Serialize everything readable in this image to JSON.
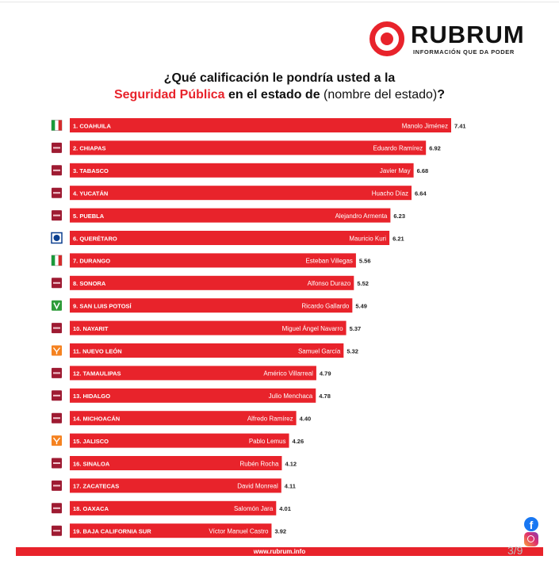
{
  "brand": {
    "name": "RUBRUM",
    "tagline": "INFORMACIÓN QUE DA PODER",
    "color": "#e8232b"
  },
  "title": {
    "line1": "¿Qué calificación le pondría usted a la",
    "line2_highlight": "Seguridad Pública",
    "line2_mid": " en el estado de ",
    "line2_paren": "(nombre del estado)",
    "line2_end": "?"
  },
  "chart_data": {
    "type": "bar",
    "orientation": "horizontal",
    "xlim": [
      0,
      7.41
    ],
    "bar_color": "#e8232b",
    "categories": [
      "1. COAHUILA",
      "2. CHIAPAS",
      "3. TABASCO",
      "4. YUCATÁN",
      "5. PUEBLA",
      "6. QUERÉTARO",
      "7. DURANGO",
      "8. SONORA",
      "9. SAN LUIS POTOSÍ",
      "10. NAYARIT",
      "11. NUEVO LEÓN",
      "12. TAMAULIPAS",
      "13. HIDALGO",
      "14. MICHOACÁN",
      "15. JALISCO",
      "16. SINALOA",
      "17. ZACATECAS",
      "18. OAXACA",
      "19. BAJA CALIFORNIA SUR"
    ],
    "governors": [
      "Manolo Jiménez",
      "Eduardo Ramírez",
      "Javier May",
      "Huacho Díaz",
      "Alejandro Armenta",
      "Mauricio Kuri",
      "Esteban Villegas",
      "Alfonso Durazo",
      "Ricardo Gallardo",
      "Miguel Ángel Navarro",
      "Samuel García",
      "Américo Villarreal",
      "Julio Menchaca",
      "Alfredo Ramírez",
      "Pablo Lemus",
      "Rubén Rocha",
      "David Monreal",
      "Salomón Jara",
      "Víctor Manuel Castro"
    ],
    "values": [
      7.41,
      6.92,
      6.68,
      6.64,
      6.23,
      6.21,
      5.56,
      5.52,
      5.49,
      5.37,
      5.32,
      4.79,
      4.78,
      4.4,
      4.26,
      4.12,
      4.11,
      4.01,
      3.92
    ],
    "value_labels": [
      "7.41",
      "6.92",
      "6.68",
      "6.64",
      "6.23",
      "6.21",
      "5.56",
      "5.52",
      "5.49",
      "5.37",
      "5.32",
      "4.79",
      "4.78",
      "4.40",
      "4.26",
      "4.12",
      "4.11",
      "4.01",
      "3.92"
    ],
    "party_icons": [
      "pri-logo",
      "morena-logo",
      "morena-logo",
      "morena-logo",
      "morena-logo",
      "pan-logo",
      "pri-logo",
      "morena-logo",
      "pvem-logo",
      "morena-logo",
      "mc-logo",
      "morena-logo",
      "morena-logo",
      "morena-logo",
      "mc-logo",
      "morena-logo",
      "morena-logo",
      "morena-logo",
      "morena-logo"
    ]
  },
  "footer": {
    "url": "www.rubrum.info",
    "page": "3/9"
  },
  "social": {
    "facebook_icon": "facebook-icon",
    "instagram_icon": "instagram-icon"
  }
}
